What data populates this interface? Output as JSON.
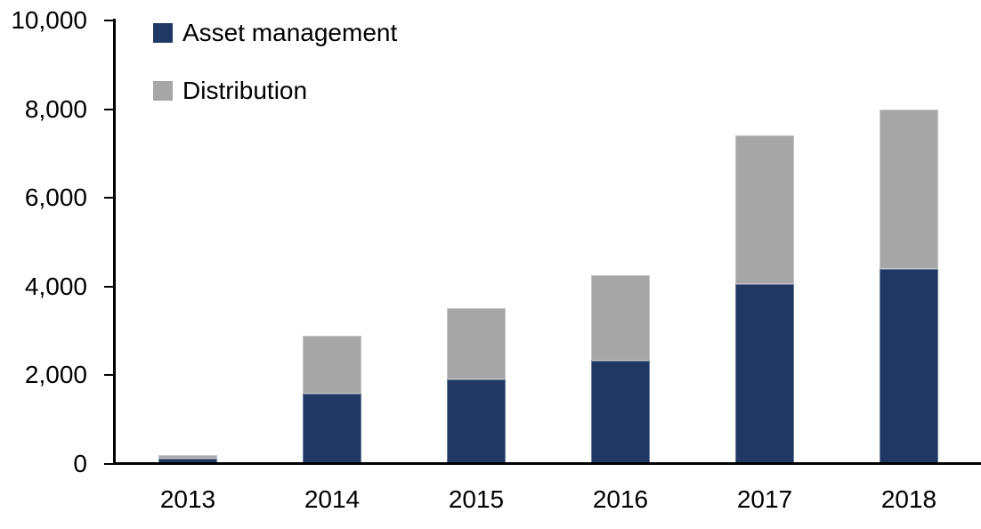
{
  "chart_data": {
    "type": "bar",
    "stacked": true,
    "title": "",
    "xlabel": "",
    "ylabel": "",
    "categories": [
      "2013",
      "2014",
      "2015",
      "2016",
      "2017",
      "2018"
    ],
    "series": [
      {
        "name": "Asset management",
        "color": "#1F3864",
        "values": [
          120,
          1580,
          1900,
          2330,
          4050,
          4400
        ]
      },
      {
        "name": "Distribution",
        "color": "#A6A6A6",
        "values": [
          80,
          1300,
          1600,
          1920,
          3350,
          3600
        ]
      }
    ],
    "stack_totals": [
      200,
      2880,
      3500,
      4250,
      7400,
      8000
    ],
    "ylim": [
      0,
      10000
    ],
    "ytick_step": 2000,
    "ytick_labels": [
      "0",
      "2,000",
      "4,000",
      "6,000",
      "8,000",
      "10,000"
    ],
    "grid": false,
    "legend_position": "top-left",
    "axis_color": "#000000",
    "text_color": "#000000",
    "background_color": "#FFFFFF"
  }
}
